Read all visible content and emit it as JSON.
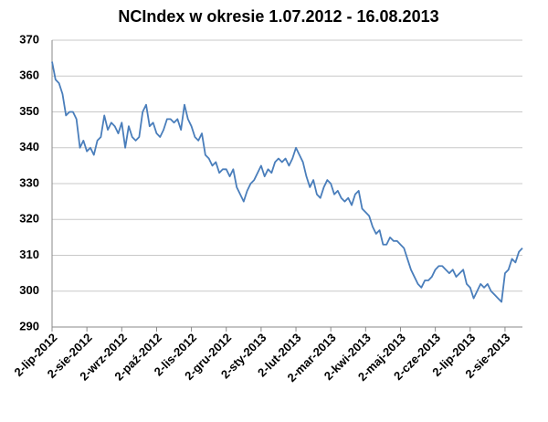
{
  "chart_data": {
    "type": "line",
    "title": "NCIndex w okresie 1.07.2012 - 16.08.2013",
    "categories": [
      "2-lip-2012",
      null,
      null,
      null,
      null,
      null,
      null,
      null,
      null,
      null,
      "2-sie-2012",
      null,
      null,
      null,
      null,
      null,
      null,
      null,
      null,
      null,
      "2-wrz-2012",
      null,
      null,
      null,
      null,
      null,
      null,
      null,
      null,
      null,
      "2-paź-2012",
      null,
      null,
      null,
      null,
      null,
      null,
      null,
      null,
      null,
      "2-lis-2012",
      null,
      null,
      null,
      null,
      null,
      null,
      null,
      null,
      null,
      "2-gru-2012",
      null,
      null,
      null,
      null,
      null,
      null,
      null,
      null,
      null,
      "2-sty-2013",
      null,
      null,
      null,
      null,
      null,
      null,
      null,
      null,
      null,
      "2-lut-2013",
      null,
      null,
      null,
      null,
      null,
      null,
      null,
      null,
      null,
      "2-mar-2013",
      null,
      null,
      null,
      null,
      null,
      null,
      null,
      null,
      null,
      "2-kwi-2013",
      null,
      null,
      null,
      null,
      null,
      null,
      null,
      null,
      null,
      "2-maj-2013",
      null,
      null,
      null,
      null,
      null,
      null,
      null,
      null,
      null,
      "2-cze-2013",
      null,
      null,
      null,
      null,
      null,
      null,
      null,
      null,
      null,
      "2-lip-2013",
      null,
      null,
      null,
      null,
      null,
      null,
      null,
      null,
      null,
      "2-sie-2013",
      null,
      null,
      null,
      null,
      null
    ],
    "values": [
      364,
      359,
      358,
      355,
      349,
      350,
      350,
      348,
      340,
      342,
      339,
      340,
      338,
      342,
      343,
      349,
      345,
      347,
      346,
      344,
      347,
      340,
      346,
      343,
      342,
      343,
      350,
      352,
      346,
      347,
      344,
      343,
      345,
      348,
      348,
      347,
      348,
      345,
      352,
      348,
      346,
      343,
      342,
      344,
      338,
      337,
      335,
      336,
      333,
      334,
      334,
      332,
      334,
      329,
      327,
      325,
      328,
      330,
      331,
      333,
      335,
      332,
      334,
      333,
      336,
      337,
      336,
      337,
      335,
      337,
      340,
      338,
      336,
      332,
      329,
      331,
      327,
      326,
      329,
      331,
      330,
      327,
      328,
      326,
      325,
      326,
      324,
      327,
      328,
      323,
      322,
      321,
      318,
      316,
      317,
      313,
      313,
      315,
      314,
      314,
      313,
      312,
      309,
      306,
      304,
      302,
      301,
      303,
      303,
      304,
      306,
      307,
      307,
      306,
      305,
      306,
      304,
      305,
      306,
      302,
      301,
      298,
      300,
      302,
      301,
      302,
      300,
      299,
      298,
      297,
      305,
      306,
      309,
      308,
      311,
      312
    ],
    "color": "#4a7ebb",
    "ylim": [
      290,
      370
    ],
    "yticks": [
      290,
      300,
      310,
      320,
      330,
      340,
      350,
      360,
      370
    ],
    "grid": true
  }
}
